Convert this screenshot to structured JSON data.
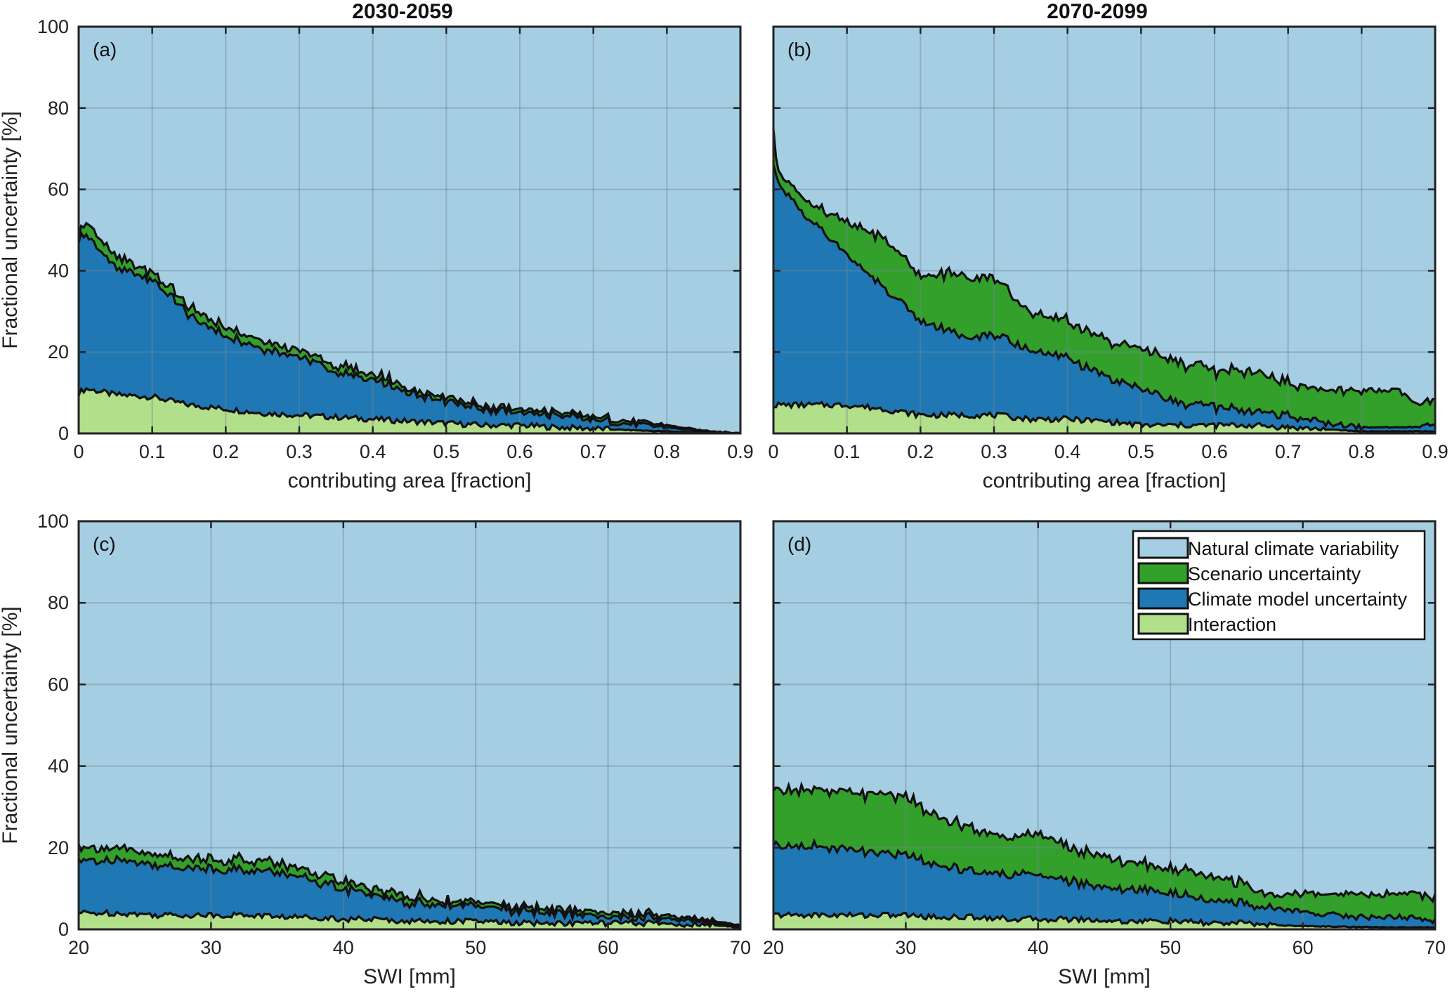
{
  "colors": {
    "natural": "#a6cee3",
    "scenario": "#33a02c",
    "model": "#1f78b4",
    "interaction": "#b2df8a",
    "outline": "#111111",
    "grid": "#6e8594"
  },
  "legend": {
    "items": [
      {
        "label": "Natural climate variability",
        "color_key": "natural"
      },
      {
        "label": "Scenario uncertainty",
        "color_key": "scenario"
      },
      {
        "label": "Climate model uncertainty",
        "color_key": "model"
      },
      {
        "label": "Interaction",
        "color_key": "interaction"
      }
    ]
  },
  "chart_data": [
    {
      "type": "area",
      "panel": "(a)",
      "title": "2030-2059",
      "xlabel": "contributing area [fraction]",
      "ylabel": "Fractional uncertainty [%]",
      "xlim": [
        0,
        0.9
      ],
      "ylim": [
        0,
        100
      ],
      "xticks": [
        "0",
        "0.1",
        "0.2",
        "0.3",
        "0.4",
        "0.5",
        "0.6",
        "0.7",
        "0.8",
        "0.9"
      ],
      "yticks": [
        "0",
        "20",
        "40",
        "60",
        "80",
        "100"
      ],
      "grid": true,
      "stack_order": [
        "interaction",
        "model",
        "scenario",
        "natural"
      ],
      "x": [
        0,
        0.01,
        0.05,
        0.1,
        0.15,
        0.2,
        0.25,
        0.3,
        0.35,
        0.4,
        0.45,
        0.5,
        0.55,
        0.6,
        0.65,
        0.7,
        0.75,
        0.8,
        0.85,
        0.9
      ],
      "series": [
        {
          "name": "Interaction",
          "key": "interaction",
          "values": [
            10,
            11,
            9.5,
            9,
            7,
            6,
            5,
            4.5,
            4,
            3.5,
            3,
            2.5,
            2,
            2,
            1.5,
            1.2,
            0.8,
            0.5,
            0.2,
            0
          ]
        },
        {
          "name": "Climate model uncertainty",
          "key": "model",
          "values": [
            38,
            38,
            31,
            29,
            22,
            18,
            16,
            14.5,
            11,
            9.5,
            7,
            5.5,
            4,
            3,
            3,
            2,
            1.5,
            1,
            0.3,
            0
          ]
        },
        {
          "name": "Scenario uncertainty",
          "key": "scenario",
          "values": [
            2,
            3,
            2.5,
            2,
            2,
            2,
            1.8,
            1.5,
            1.5,
            1.5,
            1.2,
            1,
            0.8,
            0.8,
            0.8,
            0.8,
            0.7,
            0.5,
            0.2,
            0
          ]
        },
        {
          "name": "Natural climate variability",
          "key": "natural",
          "values": [
            50,
            48,
            57,
            60,
            69,
            74,
            77.2,
            79.5,
            83.5,
            85.5,
            88.8,
            91,
            93.2,
            94.2,
            94.7,
            96,
            97,
            98,
            99.3,
            100
          ]
        }
      ]
    },
    {
      "type": "area",
      "panel": "(b)",
      "title": "2070-2099",
      "xlabel": "contributing area [fraction]",
      "ylabel": "",
      "xlim": [
        0,
        0.9
      ],
      "ylim": [
        0,
        100
      ],
      "xticks": [
        "0",
        "0.1",
        "0.2",
        "0.3",
        "0.4",
        "0.5",
        "0.6",
        "0.7",
        "0.8",
        "0.9"
      ],
      "yticks": [],
      "grid": true,
      "stack_order": [
        "interaction",
        "model",
        "scenario",
        "natural"
      ],
      "x": [
        0,
        0.005,
        0.05,
        0.1,
        0.15,
        0.2,
        0.25,
        0.3,
        0.35,
        0.4,
        0.45,
        0.5,
        0.55,
        0.6,
        0.65,
        0.7,
        0.75,
        0.8,
        0.85,
        0.88,
        0.9
      ],
      "series": [
        {
          "name": "Interaction",
          "key": "interaction",
          "values": [
            7,
            7,
            7,
            7,
            6,
            4.5,
            4.5,
            4.5,
            3.5,
            3.5,
            3,
            2,
            2,
            2,
            2,
            1.5,
            1,
            0.5,
            0.5,
            0.5,
            0.5
          ]
        },
        {
          "name": "Climate model uncertainty",
          "key": "model",
          "values": [
            60,
            55,
            45,
            37,
            30,
            23,
            20,
            19.5,
            17,
            15,
            11,
            9,
            5.5,
            4.5,
            3.5,
            3,
            1.5,
            1,
            1,
            1,
            2
          ]
        },
        {
          "name": "Scenario uncertainty",
          "key": "scenario",
          "values": [
            8,
            3,
            4,
            8,
            12,
            11,
            15,
            14,
            9,
            9,
            9,
            10,
            10,
            9,
            10,
            8,
            8,
            9,
            9,
            5,
            6
          ]
        },
        {
          "name": "Natural climate variability",
          "key": "natural",
          "values": [
            25,
            35,
            44,
            48,
            52,
            61.5,
            60.5,
            62,
            70.5,
            72.5,
            77,
            79,
            82.5,
            84.5,
            84.5,
            87.5,
            89.5,
            89.5,
            89.5,
            93.5,
            91.5
          ]
        }
      ]
    },
    {
      "type": "area",
      "panel": "(c)",
      "title": "",
      "xlabel": "SWI [mm]",
      "ylabel": "Fractional uncertainty [%]",
      "xlim": [
        20,
        70
      ],
      "ylim": [
        0,
        100
      ],
      "xticks": [
        "20",
        "30",
        "40",
        "50",
        "60",
        "70"
      ],
      "yticks": [
        "0",
        "20",
        "40",
        "60",
        "80",
        "100"
      ],
      "grid": true,
      "stack_order": [
        "interaction",
        "model",
        "scenario",
        "natural"
      ],
      "x": [
        20,
        23,
        26,
        30,
        33,
        36,
        38,
        40,
        42,
        45,
        48,
        50,
        53,
        56,
        60,
        63,
        66,
        68,
        70
      ],
      "series": [
        {
          "name": "Interaction",
          "key": "interaction",
          "values": [
            4,
            4,
            3.5,
            3.5,
            3.5,
            3,
            3,
            2.5,
            2.5,
            2,
            2,
            2,
            1.5,
            1.5,
            1.5,
            1.5,
            1.2,
            1,
            0.5
          ]
        },
        {
          "name": "Climate model uncertainty",
          "key": "model",
          "values": [
            13,
            13,
            12,
            11.5,
            11,
            10.5,
            8.5,
            7.5,
            6,
            4.5,
            4,
            3.5,
            3,
            2.5,
            1.5,
            1.5,
            1.2,
            0.5,
            0.3
          ]
        },
        {
          "name": "Scenario uncertainty",
          "key": "scenario",
          "values": [
            3,
            3,
            2.5,
            2.5,
            2.5,
            2,
            2,
            2,
            1.5,
            1.5,
            1,
            1,
            1,
            1,
            1,
            1,
            0.6,
            0.5,
            0.2
          ]
        },
        {
          "name": "Natural climate variability",
          "key": "natural",
          "values": [
            80,
            80,
            82,
            82.5,
            83,
            84.5,
            86.5,
            88,
            90,
            92,
            93,
            93.5,
            94.5,
            95,
            96,
            96,
            97,
            98,
            99
          ]
        }
      ]
    },
    {
      "type": "area",
      "panel": "(d)",
      "title": "",
      "xlabel": "SWI [mm]",
      "ylabel": "",
      "xlim": [
        20,
        70
      ],
      "ylim": [
        0,
        100
      ],
      "xticks": [
        "20",
        "30",
        "40",
        "50",
        "60",
        "70"
      ],
      "yticks": [],
      "grid": true,
      "legend_position": "top-right",
      "stack_order": [
        "interaction",
        "model",
        "scenario",
        "natural"
      ],
      "x": [
        20,
        23,
        26,
        28,
        30,
        32,
        34,
        36,
        38,
        40,
        43,
        46,
        50,
        53,
        56,
        58,
        60,
        62,
        64,
        66,
        68,
        70
      ],
      "series": [
        {
          "name": "Interaction",
          "key": "interaction",
          "values": [
            3.5,
            3.5,
            3.5,
            3.5,
            3.5,
            3,
            3,
            3,
            2.5,
            2.5,
            2.5,
            2,
            2,
            1.5,
            1.5,
            1,
            0.8,
            0.7,
            0.6,
            0.5,
            0.5,
            0.5
          ]
        },
        {
          "name": "Climate model uncertainty",
          "key": "model",
          "values": [
            17,
            17,
            16,
            15,
            15,
            13,
            12,
            11,
            11,
            11,
            9,
            8,
            7,
            5.5,
            4.5,
            4,
            3.5,
            3,
            2.5,
            2.5,
            2.5,
            1.5
          ]
        },
        {
          "name": "Scenario uncertainty",
          "key": "scenario",
          "values": [
            13.5,
            14,
            14,
            14.5,
            14.5,
            12,
            11,
            10,
            9,
            10,
            8,
            7,
            6,
            6,
            4.5,
            3,
            4.5,
            5,
            5.5,
            5.5,
            6,
            6
          ]
        },
        {
          "name": "Natural climate variability",
          "key": "natural",
          "values": [
            66,
            65.5,
            66.5,
            67,
            67,
            72,
            74,
            76,
            77.5,
            76.5,
            80.5,
            83,
            85,
            87,
            89.5,
            92,
            91.2,
            91.3,
            91.4,
            91.5,
            91,
            92
          ]
        }
      ]
    }
  ]
}
